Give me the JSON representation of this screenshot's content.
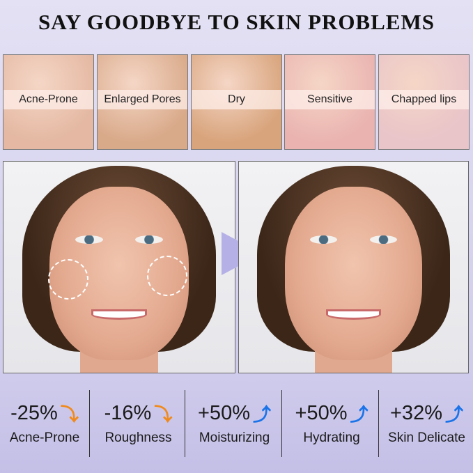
{
  "title": "SAY GOODBYE TO SKIN PROBLEMS",
  "problems": [
    {
      "label": "Acne-Prone",
      "color": "#e4b8a2"
    },
    {
      "label": "Enlarged Pores",
      "color": "#d9aa8a"
    },
    {
      "label": "Dry",
      "color": "#d8a47c"
    },
    {
      "label": "Sensitive",
      "color": "#eab3b0"
    },
    {
      "label": "Chapped lips",
      "color": "#e9c4c9"
    }
  ],
  "comparison": {
    "arrow_color": "#b5b0e6"
  },
  "stats": [
    {
      "value": "-25%",
      "label": "Acne-Prone",
      "direction": "down",
      "color": "#f08a1c"
    },
    {
      "value": "-16%",
      "label": "Roughness",
      "direction": "down",
      "color": "#f08a1c"
    },
    {
      "value": "+50%",
      "label": "Moisturizing",
      "direction": "up",
      "color": "#1a73e8"
    },
    {
      "value": "+50%",
      "label": "Hydrating",
      "direction": "up",
      "color": "#1a73e8"
    },
    {
      "value": "+32%",
      "label": "Skin Delicate",
      "direction": "up",
      "color": "#1a73e8"
    }
  ]
}
